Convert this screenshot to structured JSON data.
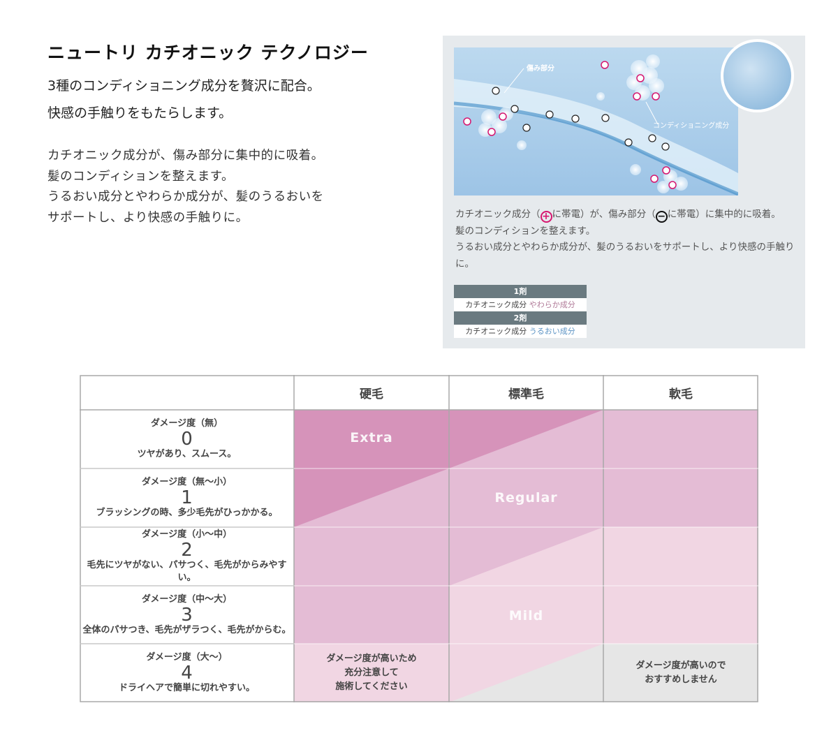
{
  "header": {
    "title": "ニュートリ カチオニック テクノロジー",
    "lead": [
      "3種のコンディショニング成分を贅沢に配合。",
      "快感の手触りをもたらします。"
    ],
    "body": [
      "カチオニック成分が、傷み部分に集中的に吸着。",
      "髪のコンディションを整えます。",
      "うるおい成分とやわらか成分が、髪のうるおいを",
      "サポートし、より快感の手触りに。"
    ]
  },
  "diagram": {
    "label_damaged": "傷み部分",
    "label_conditioning": "コンディショニング成分",
    "plus_color": "#d6166f",
    "minus_color": "#222222",
    "bg_color": "#a9cdea"
  },
  "caption": {
    "p1": "カチオニック成分（",
    "p2": "に帯電）が、傷み部分（",
    "p3": "に帯電）に集中的に吸着。",
    "plus_icon": "plus-circle-icon",
    "minus_icon": "minus-circle-icon",
    "plus": "+",
    "minus": "−",
    "line2": "髪のコンディションを整えます。",
    "line3": "うるおい成分とやわらか成分が、髪のうるおいをサポートし、より快感の手触りに。"
  },
  "legend": [
    {
      "head": "1剤",
      "base": "カチオニック成分",
      "extra": "やわらか成分",
      "extra_color": "#b07a98"
    },
    {
      "head": "2剤",
      "base": "カチオニック成分",
      "extra": "うるおい成分",
      "extra_color": "#5b93c4"
    }
  ],
  "table": {
    "columns": [
      "硬毛",
      "標準毛",
      "軟毛"
    ],
    "rows": [
      {
        "level": "ダメージ度（無）",
        "num": "0",
        "desc": "ツヤがあり、スムース。"
      },
      {
        "level": "ダメージ度（無〜小）",
        "num": "1",
        "desc": "ブラッシングの時、多少毛先がひっかかる。"
      },
      {
        "level": "ダメージ度（小〜中）",
        "num": "2",
        "desc": "毛先にツヤがない、パサつく、毛先がからみやすい。"
      },
      {
        "level": "ダメージ度（中〜大）",
        "num": "3",
        "desc": "全体のパサつき、毛先がザラつく、毛先がからむ。"
      },
      {
        "level": "ダメージ度（大〜）",
        "num": "4",
        "desc": "ドライヘアで簡単に切れやすい。"
      }
    ],
    "zones": {
      "extra": "Extra",
      "regular": "Regular",
      "mild": "Mild"
    },
    "colors": {
      "extra": "#d693ba",
      "regular": "#e4bcd5",
      "mild": "#f1d6e3",
      "none": "#e6e6e6"
    },
    "notes": {
      "caution": [
        "ダメージ度が高いため",
        "充分注意して",
        "施術してください"
      ],
      "not_recommended": [
        "ダメージ度が高いので",
        "おすすめしません"
      ]
    }
  }
}
